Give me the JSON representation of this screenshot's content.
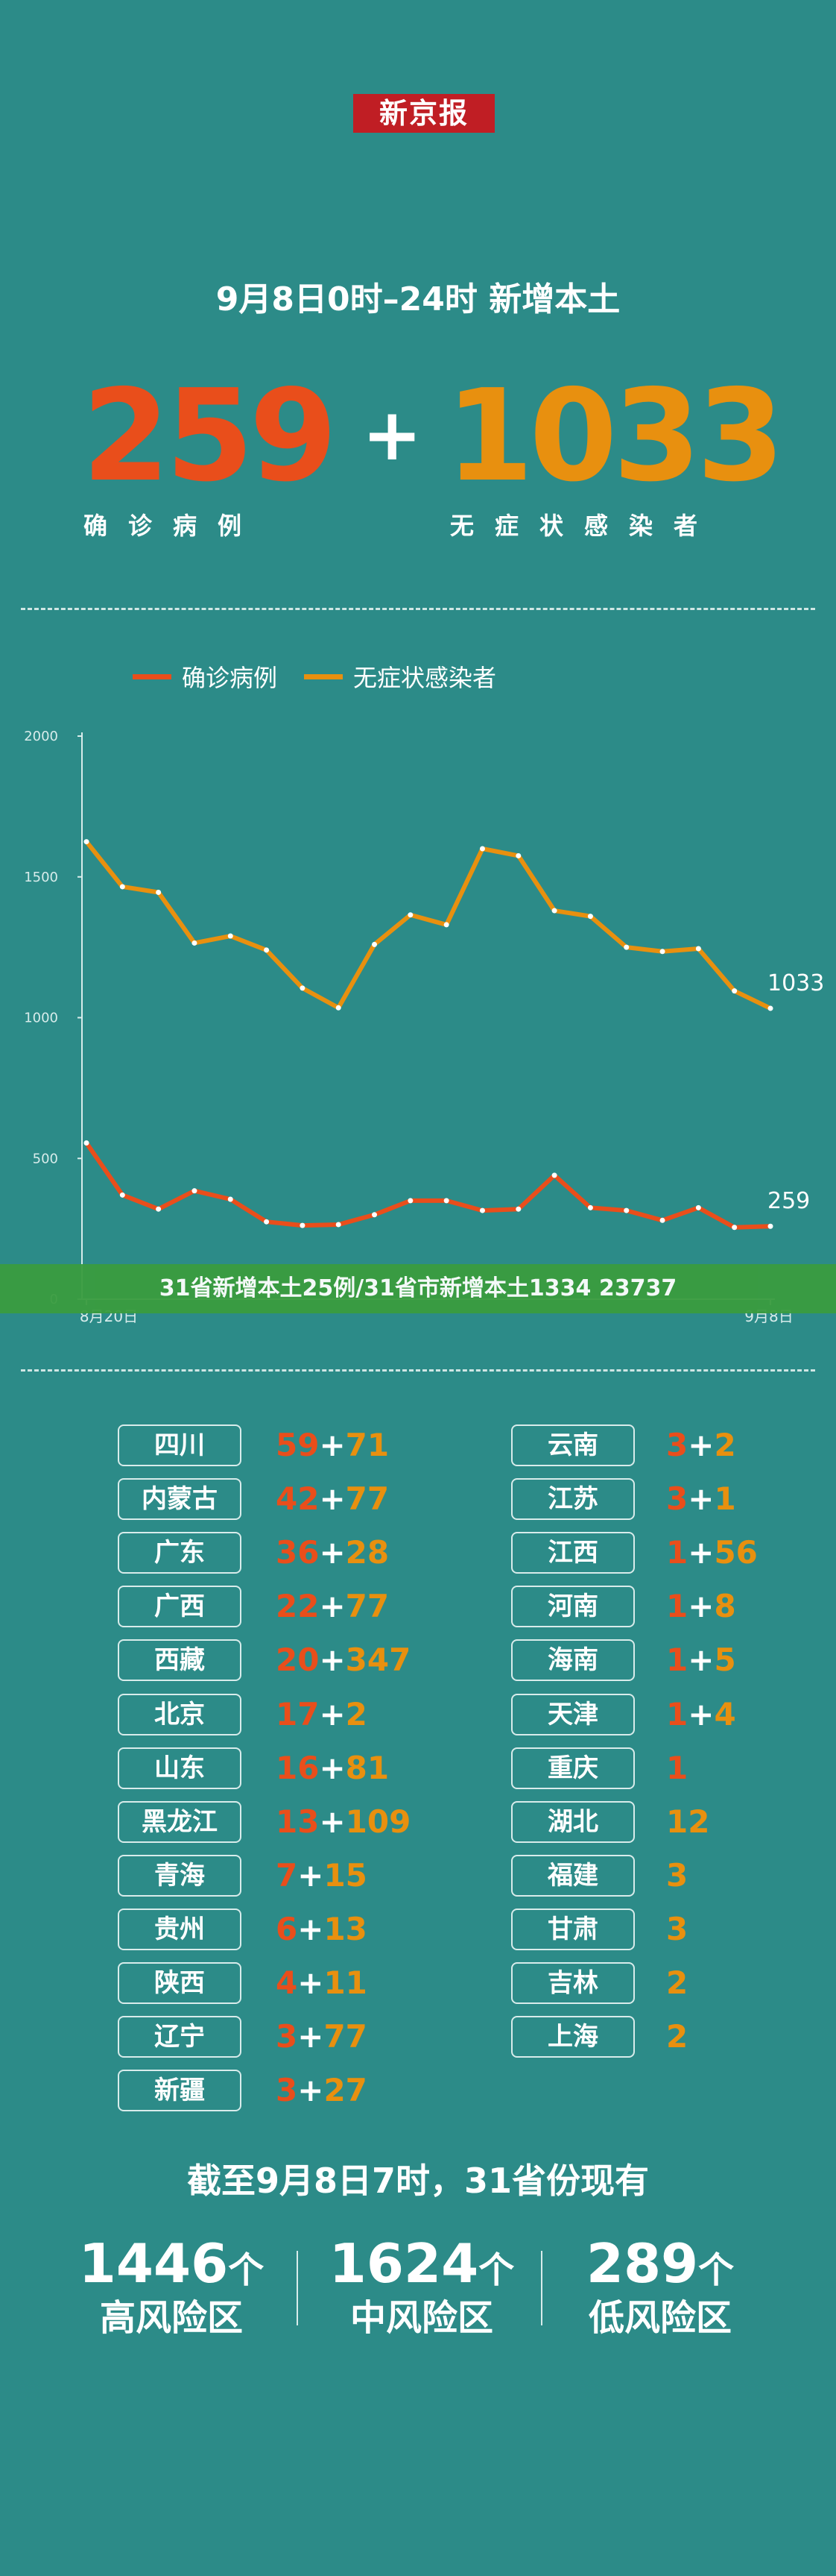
{
  "logo": "新京报",
  "headline": "9月8日0时–24时    新增本土",
  "confirmed": {
    "value": "259",
    "label": "确诊病例"
  },
  "plus": "+",
  "asymptomatic": {
    "value": "1033",
    "label": "无症状感染者"
  },
  "banner": "31省新增本土25例/31省市新增本土1334 23737",
  "colors": {
    "confirmed": "#e94e1b",
    "asymptomatic": "#e8900f",
    "background": "#2c8b88",
    "banner": "#3a9c3f",
    "logo": "#c01e24"
  },
  "chart_data": {
    "type": "line",
    "x_start_label": "8月20日",
    "x_end_label": "9月8日",
    "ylim": [
      0,
      2000
    ],
    "yticks": [
      "0",
      "500",
      "1000",
      "1500",
      "2000"
    ],
    "legend_position": "top",
    "series": [
      {
        "name": "确诊病例",
        "color": "#e94e1b",
        "end_label": "259",
        "values": [
          555,
          370,
          320,
          385,
          355,
          275,
          262,
          265,
          300,
          350,
          350,
          315,
          320,
          440,
          325,
          315,
          280,
          325,
          255,
          259
        ]
      },
      {
        "name": "无症状感染者",
        "color": "#e8900f",
        "end_label": "1033",
        "values": [
          1625,
          1465,
          1445,
          1265,
          1290,
          1240,
          1105,
          1035,
          1260,
          1365,
          1330,
          1600,
          1575,
          1380,
          1360,
          1250,
          1235,
          1245,
          1095,
          1033
        ]
      }
    ]
  },
  "provinces_left": [
    {
      "name": "四川",
      "confirmed": "59",
      "asym": "71"
    },
    {
      "name": "内蒙古",
      "confirmed": "42",
      "asym": "77"
    },
    {
      "name": "广东",
      "confirmed": "36",
      "asym": "28"
    },
    {
      "name": "广西",
      "confirmed": "22",
      "asym": "77"
    },
    {
      "name": "西藏",
      "confirmed": "20",
      "asym": "347"
    },
    {
      "name": "北京",
      "confirmed": "17",
      "asym": "2"
    },
    {
      "name": "山东",
      "confirmed": "16",
      "asym": "81"
    },
    {
      "name": "黑龙江",
      "confirmed": "13",
      "asym": "109"
    },
    {
      "name": "青海",
      "confirmed": "7",
      "asym": "15"
    },
    {
      "name": "贵州",
      "confirmed": "6",
      "asym": "13"
    },
    {
      "name": "陕西",
      "confirmed": "4",
      "asym": "11"
    },
    {
      "name": "辽宁",
      "confirmed": "3",
      "asym": "77"
    },
    {
      "name": "新疆",
      "confirmed": "3",
      "asym": "27"
    }
  ],
  "provinces_right": [
    {
      "name": "云南",
      "confirmed": "3",
      "asym": "2"
    },
    {
      "name": "江苏",
      "confirmed": "3",
      "asym": "1"
    },
    {
      "name": "江西",
      "confirmed": "1",
      "asym": "56"
    },
    {
      "name": "河南",
      "confirmed": "1",
      "asym": "8"
    },
    {
      "name": "海南",
      "confirmed": "1",
      "asym": "5"
    },
    {
      "name": "天津",
      "confirmed": "1",
      "asym": "4"
    },
    {
      "name": "重庆",
      "confirmed": "1",
      "asym": ""
    },
    {
      "name": "湖北",
      "confirmed": "",
      "asym": "12"
    },
    {
      "name": "福建",
      "confirmed": "",
      "asym": "3"
    },
    {
      "name": "甘肃",
      "confirmed": "",
      "asym": "3"
    },
    {
      "name": "吉林",
      "confirmed": "",
      "asym": "2"
    },
    {
      "name": "上海",
      "confirmed": "",
      "asym": "2"
    }
  ],
  "footer": {
    "title": "截至9月8日7时，31省份现有",
    "unit": "个",
    "risk": [
      {
        "count": "1446",
        "label": "高风险区"
      },
      {
        "count": "1624",
        "label": "中风险区"
      },
      {
        "count": "289",
        "label": "低风险区"
      }
    ]
  }
}
